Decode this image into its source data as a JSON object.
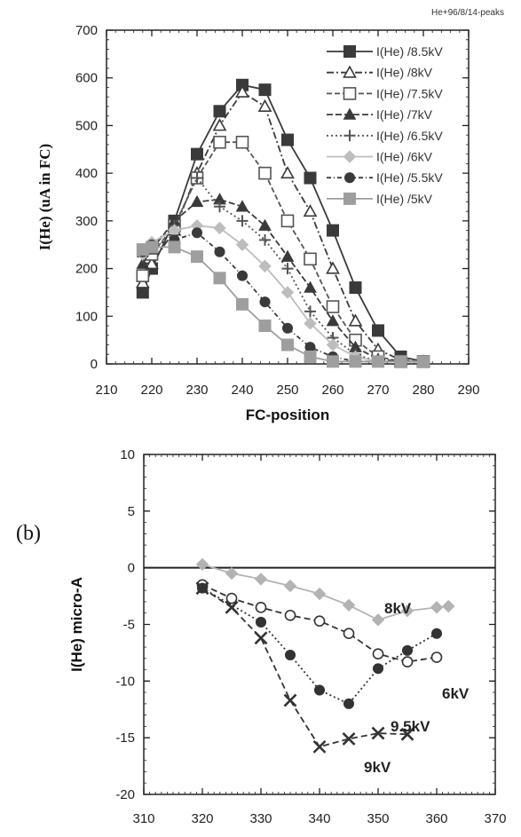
{
  "chart_data": [
    {
      "type": "line",
      "corner_label": "He+96/8/14-peaks",
      "title": "",
      "xlabel": "FC-position",
      "ylabel": "I(He) (uA in FC)",
      "xlim": [
        210,
        290
      ],
      "ylim": [
        0,
        700
      ],
      "xticks": [
        "210",
        "220",
        "230",
        "240",
        "250",
        "260",
        "270",
        "280",
        "290"
      ],
      "yticks": [
        "0",
        "100",
        "200",
        "300",
        "400",
        "500",
        "600",
        "700"
      ],
      "legend_position": "top-right",
      "series": [
        {
          "name": "I(He) /8.5kV",
          "marker": "square-filled",
          "color": "#3a3a3a",
          "dash": "none",
          "x": [
            218,
            220,
            225,
            230,
            235,
            240,
            245,
            250,
            255,
            260,
            265,
            270,
            275,
            280
          ],
          "y": [
            150,
            200,
            300,
            440,
            530,
            585,
            575,
            470,
            390,
            280,
            160,
            70,
            15,
            5
          ]
        },
        {
          "name": "I(He) /8kV",
          "marker": "triangle-open",
          "color": "#3a3a3a",
          "dash": "8,3,2,3",
          "x": [
            218,
            220,
            225,
            230,
            235,
            240,
            245,
            250,
            255,
            260,
            265,
            270,
            275,
            280
          ],
          "y": [
            170,
            210,
            280,
            400,
            500,
            570,
            540,
            400,
            320,
            200,
            90,
            30,
            8,
            5
          ]
        },
        {
          "name": "I(He) /7.5kV",
          "marker": "square-open",
          "color": "#555555",
          "dash": "6,3",
          "x": [
            218,
            220,
            225,
            230,
            235,
            240,
            245,
            250,
            255,
            260,
            265,
            270,
            275,
            280
          ],
          "y": [
            185,
            230,
            290,
            390,
            465,
            465,
            400,
            300,
            220,
            120,
            50,
            15,
            5,
            5
          ]
        },
        {
          "name": "I(He) /7kV",
          "marker": "triangle-filled",
          "color": "#3a3a3a",
          "dash": "7,3",
          "x": [
            218,
            220,
            225,
            230,
            235,
            240,
            245,
            250,
            255,
            260,
            265,
            270,
            275,
            280
          ],
          "y": [
            210,
            240,
            300,
            340,
            345,
            330,
            290,
            225,
            160,
            90,
            35,
            10,
            5,
            5
          ]
        },
        {
          "name": "I(He) /6.5kV",
          "marker": "plus",
          "color": "#555555",
          "dash": "2,3",
          "x": [
            218,
            220,
            225,
            230,
            235,
            240,
            245,
            250,
            255,
            260,
            265,
            270,
            275,
            280
          ],
          "y": [
            225,
            250,
            290,
            390,
            330,
            300,
            260,
            200,
            110,
            55,
            20,
            5,
            5,
            5
          ]
        },
        {
          "name": "I(He) /6kV",
          "marker": "diamond-filled",
          "color": "#bdbdbd",
          "dash": "none",
          "x": [
            218,
            220,
            225,
            230,
            235,
            240,
            245,
            250,
            255,
            260,
            265,
            270,
            275,
            280
          ],
          "y": [
            230,
            255,
            280,
            290,
            285,
            250,
            205,
            150,
            85,
            40,
            15,
            5,
            5,
            5
          ]
        },
        {
          "name": "I(He) /5.5kV",
          "marker": "circle-filled",
          "color": "#3a3a3a",
          "dash": "5,3,1,3",
          "x": [
            218,
            220,
            225,
            230,
            235,
            240,
            245,
            250,
            255,
            260,
            265,
            270,
            275,
            280
          ],
          "y": [
            235,
            250,
            260,
            275,
            235,
            185,
            130,
            75,
            35,
            15,
            5,
            5,
            5,
            5
          ]
        },
        {
          "name": "I(He) /5kV",
          "marker": "square-filled",
          "color": "#9e9e9e",
          "dash": "none",
          "x": [
            218,
            220,
            225,
            230,
            235,
            240,
            245,
            250,
            255,
            260,
            265,
            270,
            275,
            280
          ],
          "y": [
            240,
            245,
            245,
            225,
            180,
            125,
            80,
            40,
            15,
            5,
            5,
            5,
            5,
            5
          ]
        }
      ]
    },
    {
      "type": "line",
      "panel_label": "(b)",
      "title": "",
      "xlabel": "",
      "ylabel": "I(He) micro-A",
      "xlim": [
        310,
        370
      ],
      "ylim": [
        -20,
        10
      ],
      "xticks": [
        "310",
        "320",
        "330",
        "340",
        "350",
        "360",
        "370"
      ],
      "yticks": [
        "-20",
        "-15",
        "-10",
        "-5",
        "0",
        "5",
        "10"
      ],
      "zero_line": true,
      "series": [
        {
          "label": "8kV",
          "marker": "diamond-filled",
          "color": "#b3b3b3",
          "dash": "none",
          "x": [
            320,
            325,
            330,
            335,
            340,
            345,
            350,
            355,
            360,
            362
          ],
          "y": [
            0.3,
            -0.5,
            -1.0,
            -1.6,
            -2.3,
            -3.3,
            -4.6,
            -3.8,
            -3.5,
            -3.4
          ]
        },
        {
          "label": "6kV",
          "marker": "circle-open",
          "color": "#333333",
          "dash": "7,4",
          "x": [
            320,
            325,
            330,
            335,
            340,
            345,
            350,
            355,
            360
          ],
          "y": [
            -1.5,
            -2.7,
            -3.5,
            -4.2,
            -4.7,
            -5.8,
            -7.6,
            -8.3,
            -7.9
          ]
        },
        {
          "label": "9.5kV",
          "marker": "circle-filled",
          "color": "#333333",
          "dash": "2,3",
          "x": [
            320,
            330,
            335,
            340,
            345,
            350,
            355,
            360
          ],
          "y": [
            -1.8,
            -4.8,
            -7.7,
            -10.8,
            -12.0,
            -8.9,
            -7.3,
            -5.8
          ]
        },
        {
          "label": "9kV",
          "marker": "x",
          "color": "#333333",
          "dash": "7,4",
          "x": [
            320,
            325,
            330,
            335,
            340,
            345,
            350,
            355
          ],
          "y": [
            -1.8,
            -3.5,
            -6.2,
            -11.7,
            -15.8,
            -15.1,
            -14.6,
            -14.7
          ]
        }
      ],
      "annotations": [
        "8kV",
        "6kV",
        "9.5kV",
        "9kV"
      ]
    }
  ]
}
